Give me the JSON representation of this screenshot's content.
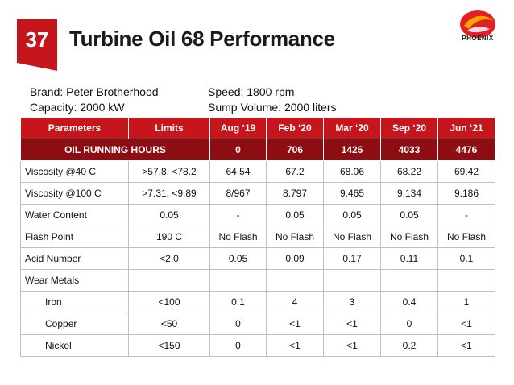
{
  "slide_number": "37",
  "title": "Turbine Oil 68 Performance",
  "logo": {
    "text": "PHOENIX",
    "icon": "phoenix-logo",
    "colors": [
      "#e31e24",
      "#f7a600"
    ]
  },
  "info": {
    "brand": "Brand: Peter Brotherhood",
    "capacity": "Capacity: 2000 kW",
    "speed": "Speed: 1800 rpm",
    "sump": "Sump Volume: 2000 liters"
  },
  "table": {
    "headers": [
      "Parameters",
      "Limits",
      "Aug ‘19",
      "Feb ‘20",
      "Mar ‘20",
      "Sep ‘20",
      "Jun ‘21"
    ],
    "hours_row": [
      "OIL RUNNING HOURS",
      "0",
      "706",
      "1425",
      "4033",
      "4476"
    ],
    "rows": [
      [
        "Viscosity @40 C",
        ">57.8, <78.2",
        "64.54",
        "67.2",
        "68.06",
        "68.22",
        "69.42"
      ],
      [
        "Viscosity @100 C",
        ">7.31, <9.89",
        "8/967",
        "8.797",
        "9.465",
        "9.134",
        "9.186"
      ],
      [
        "Water Content",
        "0.05",
        "-",
        "0.05",
        "0.05",
        "0.05",
        "-"
      ],
      [
        "Flash Point",
        "190 C",
        "No Flash",
        "No Flash",
        "No Flash",
        "No Flash",
        "No Flash"
      ],
      [
        "Acid Number",
        "<2.0",
        "0.05",
        "0.09",
        "0.17",
        "0.11",
        "0.1"
      ],
      [
        "Wear Metals",
        "",
        "",
        "",
        "",
        "",
        ""
      ],
      [
        "Iron",
        "<100",
        "0.1",
        "4",
        "3",
        "0.4",
        "1"
      ],
      [
        "Copper",
        "<50",
        "0",
        "<1",
        "<1",
        "0",
        "<1"
      ],
      [
        "Nickel",
        "<150",
        "0",
        "<1",
        "<1",
        "0.2",
        "<1"
      ]
    ]
  },
  "colors": {
    "header_red": "#c5161d",
    "hours_dark_red": "#8e0d12"
  }
}
